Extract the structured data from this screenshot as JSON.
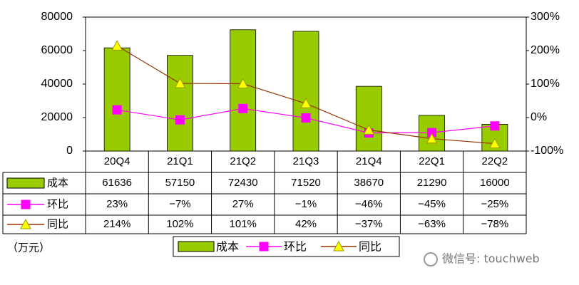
{
  "chart_data": {
    "type": "bar",
    "categories": [
      "20Q4",
      "21Q1",
      "21Q2",
      "21Q3",
      "21Q4",
      "22Q1",
      "22Q2"
    ],
    "unit_label": "（万元）",
    "series": [
      {
        "name": "成本",
        "type": "bar",
        "color": "#99cc00",
        "values": [
          61636,
          57150,
          72430,
          71520,
          38670,
          21290,
          16000
        ]
      },
      {
        "name": "环比",
        "type": "line",
        "axis": "y2",
        "color": "#ff00ff",
        "marker": "square",
        "marker_color": "#ff00ff",
        "values": [
          23,
          -7,
          27,
          -1,
          -46,
          -45,
          -25
        ],
        "value_labels": [
          "23%",
          "−7%",
          "27%",
          "−1%",
          "−46%",
          "−45%",
          "−25%"
        ]
      },
      {
        "name": "同比",
        "type": "line",
        "axis": "y2",
        "color": "#993300",
        "marker": "triangle",
        "marker_color": "#ffff00",
        "values": [
          214,
          102,
          101,
          42,
          -37,
          -63,
          -78
        ],
        "value_labels": [
          "214%",
          "102%",
          "101%",
          "42%",
          "−37%",
          "−63%",
          "−78%"
        ]
      }
    ],
    "ylim": [
      0,
      80000
    ],
    "yticks": [
      0,
      20000,
      40000,
      60000,
      80000
    ],
    "y2lim": [
      -100,
      300
    ],
    "y2ticks": [
      {
        "value": -100,
        "label": "-100%"
      },
      {
        "value": 0,
        "label": "0%"
      },
      {
        "value": 100,
        "label": "100%"
      },
      {
        "value": 200,
        "label": "200%"
      },
      {
        "value": 300,
        "label": "300%"
      }
    ]
  },
  "watermark": "微信号: touchweb"
}
